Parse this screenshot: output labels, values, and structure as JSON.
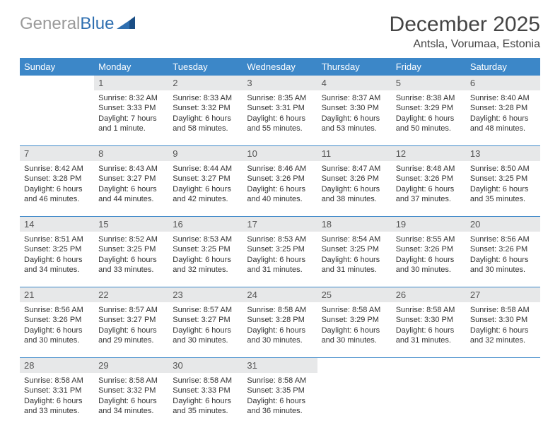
{
  "brand": {
    "part1": "General",
    "part2": "Blue"
  },
  "title": "December 2025",
  "location": "Antsla, Vorumaa, Estonia",
  "headerColor": "#3c87c8",
  "headerTextColor": "#ffffff",
  "dayNumBg": "#e7e8e9",
  "borderColor": "#3c87c8",
  "dow": [
    "Sunday",
    "Monday",
    "Tuesday",
    "Wednesday",
    "Thursday",
    "Friday",
    "Saturday"
  ],
  "weeks": [
    [
      {
        "n": "",
        "lines": []
      },
      {
        "n": "1",
        "lines": [
          "Sunrise: 8:32 AM",
          "Sunset: 3:33 PM",
          "Daylight: 7 hours",
          "and 1 minute."
        ]
      },
      {
        "n": "2",
        "lines": [
          "Sunrise: 8:33 AM",
          "Sunset: 3:32 PM",
          "Daylight: 6 hours",
          "and 58 minutes."
        ]
      },
      {
        "n": "3",
        "lines": [
          "Sunrise: 8:35 AM",
          "Sunset: 3:31 PM",
          "Daylight: 6 hours",
          "and 55 minutes."
        ]
      },
      {
        "n": "4",
        "lines": [
          "Sunrise: 8:37 AM",
          "Sunset: 3:30 PM",
          "Daylight: 6 hours",
          "and 53 minutes."
        ]
      },
      {
        "n": "5",
        "lines": [
          "Sunrise: 8:38 AM",
          "Sunset: 3:29 PM",
          "Daylight: 6 hours",
          "and 50 minutes."
        ]
      },
      {
        "n": "6",
        "lines": [
          "Sunrise: 8:40 AM",
          "Sunset: 3:28 PM",
          "Daylight: 6 hours",
          "and 48 minutes."
        ]
      }
    ],
    [
      {
        "n": "7",
        "lines": [
          "Sunrise: 8:42 AM",
          "Sunset: 3:28 PM",
          "Daylight: 6 hours",
          "and 46 minutes."
        ]
      },
      {
        "n": "8",
        "lines": [
          "Sunrise: 8:43 AM",
          "Sunset: 3:27 PM",
          "Daylight: 6 hours",
          "and 44 minutes."
        ]
      },
      {
        "n": "9",
        "lines": [
          "Sunrise: 8:44 AM",
          "Sunset: 3:27 PM",
          "Daylight: 6 hours",
          "and 42 minutes."
        ]
      },
      {
        "n": "10",
        "lines": [
          "Sunrise: 8:46 AM",
          "Sunset: 3:26 PM",
          "Daylight: 6 hours",
          "and 40 minutes."
        ]
      },
      {
        "n": "11",
        "lines": [
          "Sunrise: 8:47 AM",
          "Sunset: 3:26 PM",
          "Daylight: 6 hours",
          "and 38 minutes."
        ]
      },
      {
        "n": "12",
        "lines": [
          "Sunrise: 8:48 AM",
          "Sunset: 3:26 PM",
          "Daylight: 6 hours",
          "and 37 minutes."
        ]
      },
      {
        "n": "13",
        "lines": [
          "Sunrise: 8:50 AM",
          "Sunset: 3:25 PM",
          "Daylight: 6 hours",
          "and 35 minutes."
        ]
      }
    ],
    [
      {
        "n": "14",
        "lines": [
          "Sunrise: 8:51 AM",
          "Sunset: 3:25 PM",
          "Daylight: 6 hours",
          "and 34 minutes."
        ]
      },
      {
        "n": "15",
        "lines": [
          "Sunrise: 8:52 AM",
          "Sunset: 3:25 PM",
          "Daylight: 6 hours",
          "and 33 minutes."
        ]
      },
      {
        "n": "16",
        "lines": [
          "Sunrise: 8:53 AM",
          "Sunset: 3:25 PM",
          "Daylight: 6 hours",
          "and 32 minutes."
        ]
      },
      {
        "n": "17",
        "lines": [
          "Sunrise: 8:53 AM",
          "Sunset: 3:25 PM",
          "Daylight: 6 hours",
          "and 31 minutes."
        ]
      },
      {
        "n": "18",
        "lines": [
          "Sunrise: 8:54 AM",
          "Sunset: 3:25 PM",
          "Daylight: 6 hours",
          "and 31 minutes."
        ]
      },
      {
        "n": "19",
        "lines": [
          "Sunrise: 8:55 AM",
          "Sunset: 3:26 PM",
          "Daylight: 6 hours",
          "and 30 minutes."
        ]
      },
      {
        "n": "20",
        "lines": [
          "Sunrise: 8:56 AM",
          "Sunset: 3:26 PM",
          "Daylight: 6 hours",
          "and 30 minutes."
        ]
      }
    ],
    [
      {
        "n": "21",
        "lines": [
          "Sunrise: 8:56 AM",
          "Sunset: 3:26 PM",
          "Daylight: 6 hours",
          "and 30 minutes."
        ]
      },
      {
        "n": "22",
        "lines": [
          "Sunrise: 8:57 AM",
          "Sunset: 3:27 PM",
          "Daylight: 6 hours",
          "and 29 minutes."
        ]
      },
      {
        "n": "23",
        "lines": [
          "Sunrise: 8:57 AM",
          "Sunset: 3:27 PM",
          "Daylight: 6 hours",
          "and 30 minutes."
        ]
      },
      {
        "n": "24",
        "lines": [
          "Sunrise: 8:58 AM",
          "Sunset: 3:28 PM",
          "Daylight: 6 hours",
          "and 30 minutes."
        ]
      },
      {
        "n": "25",
        "lines": [
          "Sunrise: 8:58 AM",
          "Sunset: 3:29 PM",
          "Daylight: 6 hours",
          "and 30 minutes."
        ]
      },
      {
        "n": "26",
        "lines": [
          "Sunrise: 8:58 AM",
          "Sunset: 3:30 PM",
          "Daylight: 6 hours",
          "and 31 minutes."
        ]
      },
      {
        "n": "27",
        "lines": [
          "Sunrise: 8:58 AM",
          "Sunset: 3:30 PM",
          "Daylight: 6 hours",
          "and 32 minutes."
        ]
      }
    ],
    [
      {
        "n": "28",
        "lines": [
          "Sunrise: 8:58 AM",
          "Sunset: 3:31 PM",
          "Daylight: 6 hours",
          "and 33 minutes."
        ]
      },
      {
        "n": "29",
        "lines": [
          "Sunrise: 8:58 AM",
          "Sunset: 3:32 PM",
          "Daylight: 6 hours",
          "and 34 minutes."
        ]
      },
      {
        "n": "30",
        "lines": [
          "Sunrise: 8:58 AM",
          "Sunset: 3:33 PM",
          "Daylight: 6 hours",
          "and 35 minutes."
        ]
      },
      {
        "n": "31",
        "lines": [
          "Sunrise: 8:58 AM",
          "Sunset: 3:35 PM",
          "Daylight: 6 hours",
          "and 36 minutes."
        ]
      },
      {
        "n": "",
        "lines": []
      },
      {
        "n": "",
        "lines": []
      },
      {
        "n": "",
        "lines": []
      }
    ]
  ]
}
